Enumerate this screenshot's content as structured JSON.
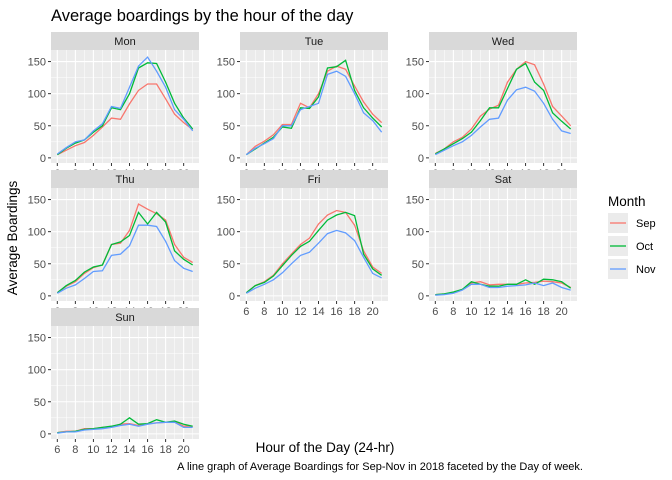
{
  "chart_data": {
    "type": "line",
    "title": "Average boardings by the hour of the day",
    "xlabel": "Hour of the Day (24-hr)",
    "ylabel": "Average Boardings",
    "caption": "A line graph of Average Boardings for Sep-Nov in 2018 faceted by the Day of week.",
    "xlim": [
      5.3,
      21.7
    ],
    "ylim": [
      -8,
      168
    ],
    "x_ticks": [
      6,
      8,
      10,
      12,
      14,
      16,
      18,
      20
    ],
    "y_ticks": [
      0,
      50,
      100,
      150
    ],
    "grid": true,
    "legend": {
      "title": "Month",
      "placement": "right",
      "entries": [
        {
          "name": "Sep",
          "color": "#F8766D"
        },
        {
          "name": "Oct",
          "color": "#00BA38"
        },
        {
          "name": "Nov",
          "color": "#619CFF"
        }
      ]
    },
    "x": [
      6,
      7,
      8,
      9,
      10,
      11,
      12,
      13,
      14,
      15,
      16,
      17,
      18,
      19,
      20,
      21
    ],
    "facets": [
      {
        "name": "Mon",
        "series": [
          {
            "name": "Sep",
            "values": [
              5,
              12,
              19,
              24,
              35,
              48,
              62,
              60,
              84,
              105,
              115,
              115,
              92,
              68,
              55,
              44
            ]
          },
          {
            "name": "Oct",
            "values": [
              5,
              15,
              23,
              28,
              40,
              50,
              78,
              75,
              100,
              140,
              148,
              147,
              118,
              85,
              62,
              45
            ]
          },
          {
            "name": "Nov",
            "values": [
              6,
              16,
              25,
              28,
              42,
              53,
              80,
              77,
              110,
              143,
              157,
              135,
              110,
              75,
              60,
              42
            ]
          }
        ]
      },
      {
        "name": "Tue",
        "series": [
          {
            "name": "Sep",
            "values": [
              5,
              18,
              26,
              36,
              52,
              52,
              85,
              78,
              100,
              135,
              143,
              138,
              112,
              87,
              68,
              55
            ]
          },
          {
            "name": "Oct",
            "values": [
              5,
              14,
              23,
              32,
              48,
              46,
              78,
              77,
              95,
              140,
              142,
              152,
              105,
              78,
              62,
              48
            ]
          },
          {
            "name": "Nov",
            "values": [
              5,
              15,
              22,
              30,
              50,
              50,
              75,
              80,
              85,
              130,
              135,
              127,
              100,
              70,
              58,
              40
            ]
          }
        ]
      },
      {
        "name": "Wed",
        "series": [
          {
            "name": "Sep",
            "values": [
              7,
              14,
              25,
              32,
              45,
              65,
              76,
              82,
              118,
              138,
              150,
              145,
              115,
              80,
              65,
              50
            ]
          },
          {
            "name": "Oct",
            "values": [
              6,
              14,
              22,
              30,
              40,
              58,
              78,
              78,
              108,
              138,
              147,
              118,
              105,
              70,
              57,
              45
            ]
          },
          {
            "name": "Nov",
            "values": [
              5,
              12,
              19,
              25,
              35,
              48,
              60,
              62,
              90,
              106,
              110,
              104,
              85,
              60,
              42,
              38
            ]
          }
        ]
      },
      {
        "name": "Thu",
        "series": [
          {
            "name": "Sep",
            "values": [
              5,
              15,
              22,
              35,
              44,
              48,
              80,
              82,
              102,
              143,
              135,
              128,
              118,
              80,
              60,
              52
            ]
          },
          {
            "name": "Oct",
            "values": [
              5,
              16,
              24,
              37,
              45,
              48,
              80,
              84,
              94,
              130,
              112,
              130,
              115,
              70,
              57,
              48
            ]
          },
          {
            "name": "Nov",
            "values": [
              4,
              12,
              17,
              27,
              38,
              39,
              63,
              65,
              78,
              110,
              110,
              108,
              85,
              55,
              43,
              38
            ]
          }
        ]
      },
      {
        "name": "Fri",
        "series": [
          {
            "name": "Sep",
            "values": [
              5,
              16,
              22,
              32,
              50,
              65,
              80,
              90,
              112,
              126,
              133,
              130,
              110,
              70,
              45,
              35
            ]
          },
          {
            "name": "Oct",
            "values": [
              5,
              16,
              21,
              31,
              47,
              63,
              77,
              85,
              102,
              118,
              126,
              130,
              125,
              65,
              42,
              32
            ]
          },
          {
            "name": "Nov",
            "values": [
              4,
              12,
              18,
              25,
              36,
              50,
              63,
              68,
              82,
              97,
              102,
              98,
              86,
              60,
              35,
              28
            ]
          }
        ]
      },
      {
        "name": "Sat",
        "series": [
          {
            "name": "Sep",
            "values": [
              2,
              3,
              5,
              10,
              20,
              22,
              17,
              18,
              18,
              18,
              20,
              21,
              23,
              22,
              20,
              13
            ]
          },
          {
            "name": "Oct",
            "values": [
              2,
              3,
              6,
              10,
              22,
              18,
              15,
              15,
              18,
              18,
              25,
              18,
              26,
              25,
              22,
              12
            ]
          },
          {
            "name": "Nov",
            "values": [
              1,
              2,
              4,
              9,
              18,
              18,
              13,
              13,
              15,
              16,
              17,
              20,
              16,
              20,
              13,
              9
            ]
          }
        ]
      },
      {
        "name": "Sun",
        "series": [
          {
            "name": "Sep",
            "values": [
              2,
              4,
              4,
              8,
              8,
              10,
              11,
              15,
              16,
              13,
              16,
              17,
              18,
              19,
              12,
              12
            ]
          },
          {
            "name": "Oct",
            "values": [
              2,
              3,
              4,
              7,
              8,
              10,
              12,
              15,
              25,
              15,
              16,
              22,
              18,
              20,
              15,
              12
            ]
          },
          {
            "name": "Nov",
            "values": [
              1,
              3,
              3,
              6,
              7,
              8,
              10,
              13,
              15,
              12,
              15,
              17,
              18,
              18,
              10,
              10
            ]
          }
        ]
      }
    ]
  }
}
